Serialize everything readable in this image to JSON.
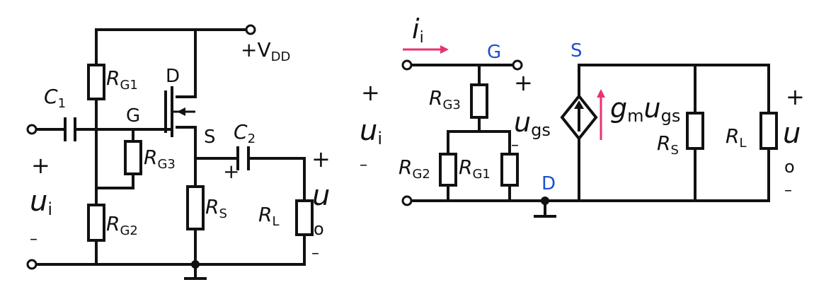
{
  "colors": {
    "wire": "#111111",
    "node_label": "#1f4fd0",
    "current_arrow": "#e8326e"
  },
  "left_circuit": {
    "supply": {
      "main": "+V",
      "sub": "DD"
    },
    "rg1": {
      "main": "R",
      "sub": "G1"
    },
    "rg2": {
      "main": "R",
      "sub": "G2"
    },
    "rg3": {
      "main": "R",
      "sub": "G3"
    },
    "rs": {
      "main": "R",
      "sub": "S"
    },
    "rl": {
      "main": "R",
      "sub": "L"
    },
    "c1": {
      "main": "C",
      "sub": "1"
    },
    "c2": {
      "main": "C",
      "sub": "2"
    },
    "c2_polarity": "+",
    "node_d": "D",
    "node_g": "G",
    "node_s": "S",
    "input": {
      "plus": "+",
      "main": "u",
      "sub": "i",
      "minus": "–"
    },
    "output": {
      "plus": "+",
      "main": "u",
      "sub": "o",
      "minus": "–"
    }
  },
  "right_circuit": {
    "input_current": {
      "main": "i",
      "sub": "i"
    },
    "node_g": "G",
    "node_s": "S",
    "node_d": "D",
    "rg1": {
      "main": "R",
      "sub": "G1"
    },
    "rg2": {
      "main": "R",
      "sub": "G2"
    },
    "rg3": {
      "main": "R",
      "sub": "G3"
    },
    "rs": {
      "main": "R",
      "sub": "S"
    },
    "rl": {
      "main": "R",
      "sub": "L"
    },
    "ugs": {
      "plus": "+",
      "main": "u",
      "sub": "gs",
      "minus": "–"
    },
    "source": {
      "gm": "g",
      "gm_sub": "m",
      "u": "u",
      "u_sub": "gs"
    },
    "input": {
      "plus": "+",
      "main": "u",
      "sub": "i",
      "minus": "–"
    },
    "output": {
      "plus": "+",
      "main": "u",
      "sub": "o",
      "minus": "–"
    }
  }
}
